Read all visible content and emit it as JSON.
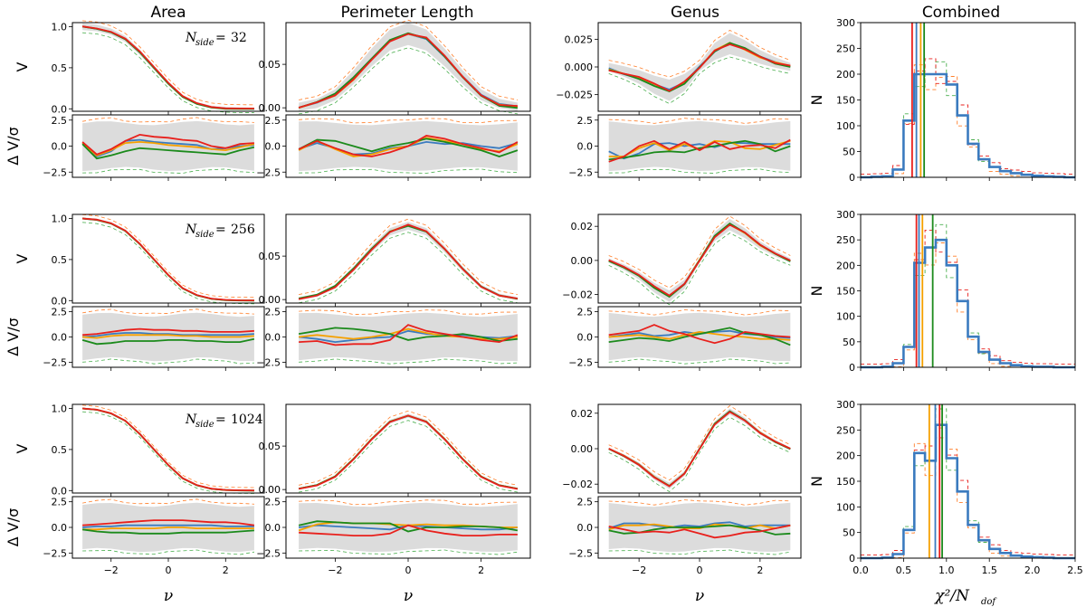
{
  "figure": {
    "column_titles": [
      "Area",
      "Perimeter Length",
      "Genus",
      "Combined"
    ],
    "row_annotations": [
      "32",
      "256",
      "1024"
    ],
    "annotation_label": "N",
    "annotation_sub": "side",
    "annotation_eq": " = ",
    "ylabel_top": "V",
    "ylabel_bottom": "Δ V/σ",
    "ylabel_hist": "N",
    "xlabel_nu": "ν",
    "xlabel_hist": "χ²/N",
    "xlabel_hist_sub": "dof"
  },
  "colors": {
    "blue": "#3b7bbf",
    "orange": "#f5a000",
    "green": "#1b8a1b",
    "red": "#e8201c",
    "band": "#dcdcdc",
    "dash_green": "#4caf50",
    "dash_orange": "#ff7f2a"
  },
  "chart_data": {
    "type": "line",
    "nu": [
      -3,
      -2.5,
      -2,
      -1.5,
      -1,
      -0.5,
      0,
      0.5,
      1,
      1.5,
      2,
      2.5,
      3
    ],
    "top_ylim": {
      "area": [
        -0.03,
        1.05
      ],
      "perimeter": [
        -0.004,
        0.098
      ],
      "genus": [
        [
          -0.04,
          0.04
        ],
        [
          -0.025,
          0.027
        ],
        [
          -0.025,
          0.025
        ]
      ]
    },
    "top_ticks": {
      "area": [
        "0.0",
        "0.5",
        "1.0"
      ],
      "area_values": [
        0,
        0.5,
        1.0
      ],
      "perimeter": [
        "0.00",
        "0.05"
      ],
      "perimeter_values": [
        0,
        0.05
      ],
      "genus": [
        [
          "−0.025",
          "0.000",
          "0.025"
        ],
        [
          "−0.02",
          "0.00",
          "0.02"
        ],
        [
          "−0.02",
          "0.00",
          "0.02"
        ]
      ],
      "genus_values": [
        [
          -0.025,
          0,
          0.025
        ],
        [
          -0.02,
          0,
          0.02
        ],
        [
          -0.02,
          0,
          0.02
        ]
      ]
    },
    "bottom_ylim": [
      -3,
      3
    ],
    "bottom_ticks": [
      "−2.5",
      "0.0",
      "2.5"
    ],
    "bottom_tick_values": [
      -2.5,
      0,
      2.5
    ],
    "x_ticks": [
      "−2",
      "0",
      "2"
    ],
    "x_tick_values": [
      -2,
      0,
      2
    ],
    "area_curve": [
      1.0,
      0.985,
      0.94,
      0.85,
      0.69,
      0.5,
      0.31,
      0.15,
      0.065,
      0.022,
      0.007,
      0.002,
      0.0
    ],
    "perimeter_curve": [
      0.001,
      0.005,
      0.015,
      0.035,
      0.058,
      0.078,
      0.085,
      0.078,
      0.058,
      0.035,
      0.015,
      0.005,
      0.001
    ],
    "genus_curve": [
      0.0,
      -0.004,
      -0.009,
      -0.016,
      -0.021,
      -0.014,
      0.0,
      0.014,
      0.021,
      0.016,
      0.009,
      0.004,
      0.0
    ],
    "series": [
      {
        "name": "blue",
        "color": "blue"
      },
      {
        "name": "orange",
        "color": "orange"
      },
      {
        "name": "green",
        "color": "green"
      },
      {
        "name": "red",
        "color": "red"
      }
    ],
    "residuals": [
      [
        [
          [
            0.3,
            -1.0,
            -0.5,
            0.5,
            0.6,
            0.4,
            0.3,
            0.2,
            0.1,
            -0.3,
            -0.2,
            0.0,
            0.1
          ],
          [
            0.3,
            -0.9,
            -0.4,
            0.3,
            0.4,
            0.3,
            0.1,
            0.0,
            -0.1,
            -0.3,
            -0.4,
            -0.1,
            0.2
          ],
          [
            0.2,
            -1.2,
            -0.9,
            -0.5,
            -0.2,
            -0.3,
            -0.4,
            -0.5,
            -0.6,
            -0.7,
            -0.8,
            -0.4,
            -0.1
          ],
          [
            0.4,
            -0.8,
            -0.3,
            0.5,
            1.1,
            0.9,
            0.8,
            0.6,
            0.5,
            0.0,
            -0.2,
            0.2,
            0.3
          ]
        ],
        [
          [
            -0.3,
            0.3,
            -0.2,
            -0.8,
            -0.7,
            -0.2,
            0.0,
            0.4,
            0.2,
            0.3,
            0.0,
            -0.2,
            0.3
          ],
          [
            -0.4,
            0.5,
            -0.3,
            -1.0,
            -0.8,
            -0.3,
            0.0,
            0.8,
            0.5,
            0.2,
            -0.3,
            -0.5,
            0.2
          ],
          [
            -0.3,
            0.6,
            0.5,
            0.0,
            -0.5,
            0.0,
            0.3,
            0.7,
            0.4,
            0.0,
            -0.4,
            -1.0,
            -0.4
          ],
          [
            -0.3,
            0.5,
            -0.2,
            -0.8,
            -1.0,
            -0.6,
            0.0,
            1.0,
            0.7,
            0.2,
            -0.2,
            -0.6,
            0.4
          ]
        ],
        [
          [
            -0.5,
            -1.2,
            -0.7,
            0.2,
            0.3,
            0.0,
            0.2,
            -0.1,
            0.3,
            0.3,
            0.2,
            0.2,
            0.2
          ],
          [
            -1.0,
            -1.0,
            -0.2,
            0.3,
            -0.4,
            0.2,
            -0.3,
            0.5,
            0.4,
            -0.2,
            -0.3,
            0.1,
            0.5
          ],
          [
            -1.3,
            -1.1,
            -0.9,
            -0.6,
            -0.5,
            -0.6,
            -0.2,
            0.0,
            0.3,
            0.5,
            0.2,
            -0.5,
            0.0
          ],
          [
            -1.5,
            -1.0,
            0.0,
            0.5,
            -0.3,
            0.4,
            -0.4,
            0.4,
            -0.3,
            0.0,
            0.1,
            -0.2,
            0.6
          ]
        ]
      ],
      [
        [
          [
            0.0,
            0.1,
            0.3,
            0.4,
            0.4,
            0.3,
            0.3,
            0.2,
            0.2,
            0.2,
            0.2,
            0.2,
            0.3
          ],
          [
            0.0,
            -0.1,
            0.1,
            0.2,
            0.2,
            0.2,
            0.2,
            0.1,
            0.1,
            0.0,
            0.0,
            0.0,
            0.1
          ],
          [
            -0.3,
            -0.7,
            -0.6,
            -0.4,
            -0.4,
            -0.4,
            -0.3,
            -0.3,
            -0.4,
            -0.4,
            -0.5,
            -0.5,
            -0.2
          ],
          [
            0.2,
            0.3,
            0.5,
            0.7,
            0.8,
            0.7,
            0.7,
            0.6,
            0.6,
            0.5,
            0.5,
            0.5,
            0.6
          ]
        ],
        [
          [
            0.0,
            -0.2,
            -0.5,
            -0.3,
            -0.1,
            0.0,
            0.6,
            0.3,
            0.2,
            0.2,
            0.0,
            -0.1,
            0.1
          ],
          [
            0.0,
            0.2,
            0.0,
            -0.2,
            0.0,
            0.3,
            0.8,
            0.4,
            0.1,
            0.0,
            -0.2,
            -0.2,
            0.0
          ],
          [
            0.3,
            0.6,
            0.9,
            0.8,
            0.6,
            0.3,
            -0.3,
            0.0,
            0.1,
            0.3,
            0.0,
            -0.4,
            -0.2
          ],
          [
            -0.5,
            -0.4,
            -0.8,
            -0.7,
            -0.7,
            -0.3,
            1.2,
            0.6,
            0.3,
            0.0,
            -0.3,
            -0.5,
            0.2
          ]
        ],
        [
          [
            0.0,
            0.2,
            0.4,
            0.1,
            0.2,
            0.5,
            0.3,
            0.5,
            0.6,
            0.3,
            0.2,
            0.0,
            -0.1
          ],
          [
            0.0,
            0.1,
            0.2,
            0.0,
            -0.2,
            0.2,
            0.5,
            0.3,
            0.1,
            0.0,
            -0.2,
            -0.2,
            -0.3
          ],
          [
            -0.5,
            -0.3,
            -0.1,
            -0.2,
            -0.4,
            0.0,
            0.3,
            0.6,
            0.9,
            0.4,
            0.2,
            -0.2,
            -0.8
          ],
          [
            0.2,
            0.4,
            0.6,
            1.2,
            0.6,
            0.3,
            -0.2,
            -0.6,
            -0.2,
            0.5,
            0.3,
            0.1,
            0.0
          ]
        ]
      ],
      [
        [
          [
            0.0,
            0.1,
            0.1,
            0.2,
            0.2,
            0.2,
            0.2,
            0.2,
            0.2,
            0.2,
            0.1,
            0.1,
            0.1
          ],
          [
            -0.2,
            -0.2,
            -0.1,
            -0.1,
            -0.1,
            -0.1,
            0.0,
            0.0,
            -0.1,
            -0.1,
            -0.1,
            -0.1,
            -0.1
          ],
          [
            -0.2,
            -0.4,
            -0.5,
            -0.5,
            -0.6,
            -0.6,
            -0.6,
            -0.5,
            -0.5,
            -0.5,
            -0.5,
            -0.4,
            -0.3
          ],
          [
            0.2,
            0.3,
            0.4,
            0.5,
            0.6,
            0.7,
            0.7,
            0.7,
            0.6,
            0.5,
            0.5,
            0.4,
            0.2
          ]
        ],
        [
          [
            0.0,
            0.2,
            0.1,
            0.0,
            -0.1,
            -0.2,
            0.2,
            0.1,
            0.0,
            -0.1,
            -0.2,
            -0.2,
            0.0
          ],
          [
            -0.3,
            0.3,
            0.5,
            0.4,
            0.4,
            0.3,
            0.2,
            0.3,
            0.2,
            0.2,
            0.1,
            0.0,
            0.0
          ],
          [
            0.2,
            0.6,
            0.5,
            0.4,
            0.4,
            0.4,
            -0.4,
            0.0,
            0.0,
            0.1,
            0.1,
            0.0,
            -0.3
          ],
          [
            -0.5,
            -0.6,
            -0.7,
            -0.8,
            -0.8,
            -0.6,
            0.2,
            -0.3,
            -0.6,
            -0.8,
            -0.8,
            -0.7,
            -0.7
          ]
        ],
        [
          [
            -0.1,
            0.4,
            0.4,
            0.2,
            0.0,
            0.2,
            0.1,
            0.4,
            0.5,
            0.1,
            0.2,
            0.2,
            0.2
          ],
          [
            -0.2,
            0.2,
            0.2,
            0.3,
            0.1,
            -0.1,
            -0.1,
            0.3,
            0.2,
            -0.1,
            0.2,
            -0.1,
            0.2
          ],
          [
            -0.3,
            -0.6,
            -0.5,
            -0.2,
            0.0,
            0.0,
            0.0,
            0.1,
            0.2,
            0.0,
            -0.3,
            -0.7,
            -0.6
          ],
          [
            0.1,
            -0.2,
            -0.5,
            -0.4,
            -0.5,
            -0.2,
            -0.6,
            -1.0,
            -0.8,
            -0.5,
            -0.4,
            -0.1,
            0.2
          ]
        ]
      ]
    ],
    "hist": {
      "xlim": [
        0,
        2.5
      ],
      "ylim": [
        0,
        300
      ],
      "x_ticks": [
        "0.0",
        "0.5",
        "1.0",
        "1.5",
        "2.0",
        "2.5"
      ],
      "x_tick_values": [
        0,
        0.5,
        1.0,
        1.5,
        2.0,
        2.5
      ],
      "y_ticks": [
        "0",
        "50",
        "100",
        "150",
        "200",
        "250",
        "300"
      ],
      "y_tick_values": [
        0,
        50,
        100,
        150,
        200,
        250,
        300
      ],
      "bin_edges": [
        0.0,
        0.125,
        0.25,
        0.375,
        0.5,
        0.625,
        0.75,
        0.875,
        1.0,
        1.125,
        1.25,
        1.375,
        1.5,
        1.625,
        1.75,
        1.875,
        2.0,
        2.125,
        2.25,
        2.375,
        2.5
      ],
      "rows": [
        {
          "counts": [
            0,
            1,
            2,
            15,
            110,
            200,
            200,
            200,
            180,
            120,
            65,
            35,
            20,
            12,
            8,
            5,
            3,
            2,
            1,
            0
          ],
          "vlines": {
            "red": 0.6,
            "blue": 0.65,
            "orange": 0.7,
            "green": 0.74
          }
        },
        {
          "counts": [
            0,
            0,
            1,
            8,
            40,
            205,
            235,
            250,
            200,
            130,
            60,
            30,
            15,
            8,
            4,
            2,
            1,
            1,
            0,
            0
          ],
          "vlines": {
            "red": 0.65,
            "blue": 0.68,
            "orange": 0.72,
            "green": 0.84
          }
        },
        {
          "counts": [
            0,
            0,
            1,
            8,
            55,
            205,
            190,
            260,
            195,
            130,
            65,
            35,
            18,
            10,
            5,
            3,
            2,
            1,
            0,
            0
          ],
          "vlines": {
            "orange": 0.8,
            "blue": 0.87,
            "red": 0.92,
            "green": 0.95
          }
        }
      ]
    }
  }
}
